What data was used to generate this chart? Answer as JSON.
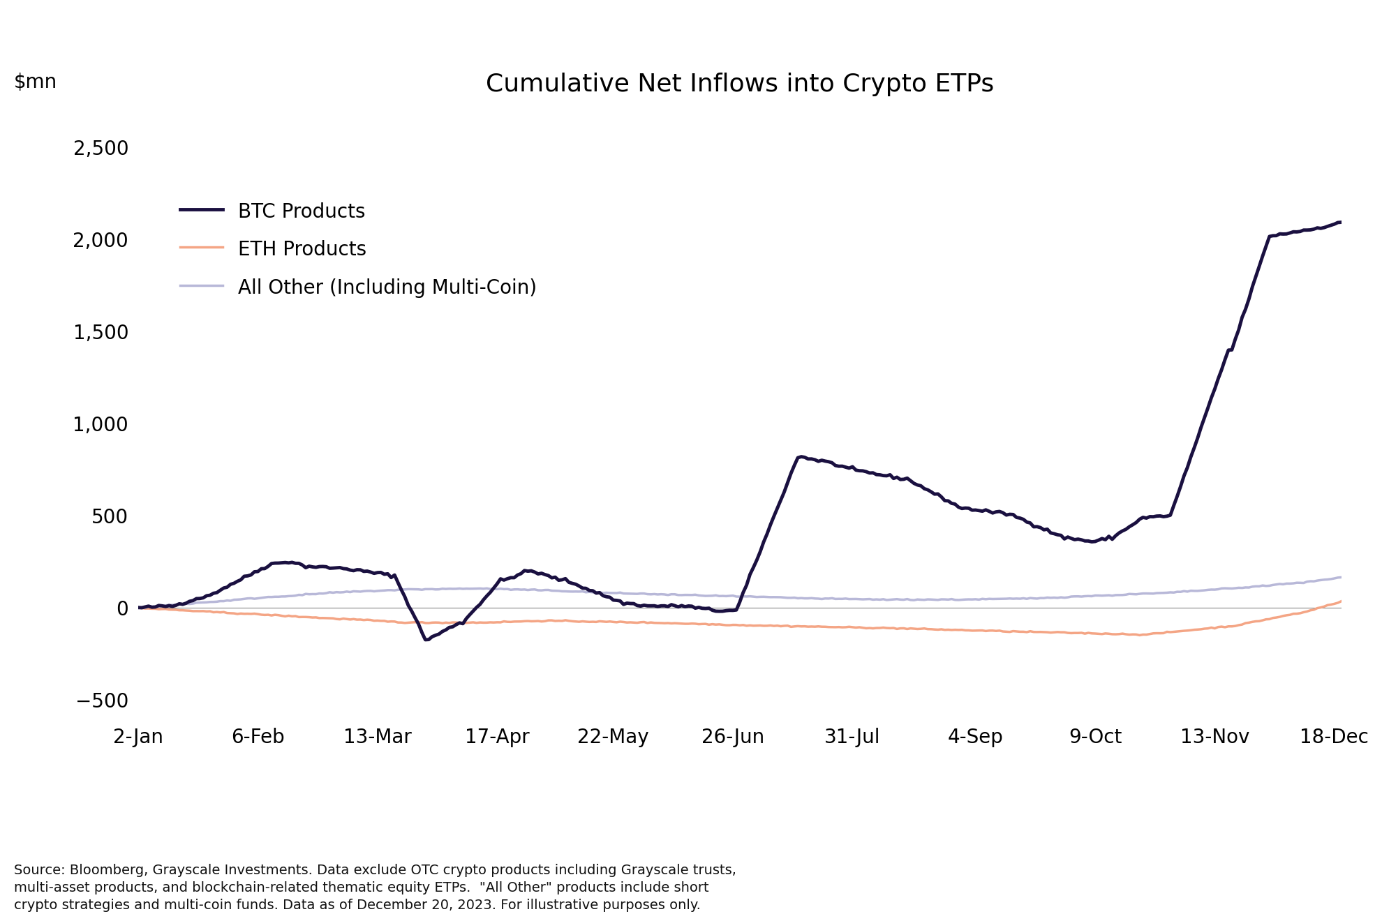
{
  "title": "Cumulative Net Inflows into Crypto ETPs",
  "ylabel": "$mn",
  "background_color": "#ffffff",
  "title_fontsize": 26,
  "label_fontsize": 20,
  "tick_fontsize": 20,
  "legend_fontsize": 20,
  "source_text": "Source: Bloomberg, Grayscale Investments. Data exclude OTC crypto products including Grayscale trusts,\nmulti-asset products, and blockchain-related thematic equity ETPs.  \"All Other\" products include short\ncrypto strategies and multi-coin funds. Data as of December 20, 2023. For illustrative purposes only.",
  "ylim": [
    -600,
    2700
  ],
  "yticks": [
    -500,
    0,
    500,
    1000,
    1500,
    2000,
    2500
  ],
  "xtick_labels": [
    "2-Jan",
    "6-Feb",
    "13-Mar",
    "17-Apr",
    "22-May",
    "26-Jun",
    "31-Jul",
    "4-Sep",
    "9-Oct",
    "13-Nov",
    "18-Dec"
  ],
  "xtick_positions": [
    0,
    35,
    70,
    105,
    139,
    174,
    209,
    245,
    280,
    315,
    350
  ],
  "line_colors": {
    "btc": "#1a1040",
    "eth": "#f4a585",
    "other": "#b8b8d8"
  },
  "line_widths": {
    "btc": 3.5,
    "eth": 2.5,
    "other": 2.5
  },
  "legend_labels": {
    "btc": "BTC Products",
    "eth": "ETH Products",
    "other": "All Other (Including Multi-Coin)"
  }
}
